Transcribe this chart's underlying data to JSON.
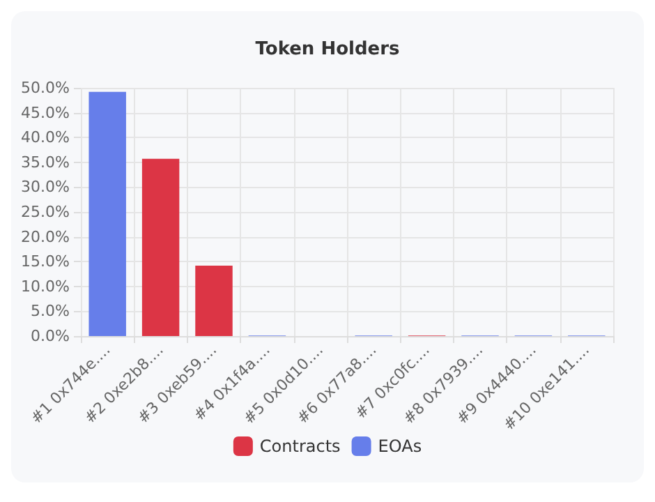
{
  "chart_data": {
    "type": "bar",
    "title": "Token Holders",
    "categories": [
      "#1 0x744e....",
      "#2 0xe2b8....",
      "#3 0xeb59....",
      "#4 0x1f4a....",
      "#5 0x0d10....",
      "#6 0x77a8....",
      "#7 0xc0fc....",
      "#8 0x7939....",
      "#9 0x4440....",
      "#10 0xe141...."
    ],
    "series": [
      {
        "name": "Contracts",
        "color": "#dc3545",
        "values": [
          null,
          35.7,
          14.2,
          null,
          null,
          null,
          0.1,
          null,
          null,
          null
        ]
      },
      {
        "name": "EOAs",
        "color": "#667eea",
        "values": [
          49.2,
          null,
          null,
          0.1,
          null,
          0.1,
          null,
          0.1,
          0.1,
          0.1
        ]
      }
    ],
    "stacked": true,
    "ylim": [
      0,
      50
    ],
    "yticks": [
      {
        "value": 0,
        "label": "0.0%"
      },
      {
        "value": 5,
        "label": "5.0%"
      },
      {
        "value": 10,
        "label": "10.0%"
      },
      {
        "value": 15,
        "label": "15.0%"
      },
      {
        "value": 20,
        "label": "20.0%"
      },
      {
        "value": 25,
        "label": "25.0%"
      },
      {
        "value": 30,
        "label": "30.0%"
      },
      {
        "value": 35,
        "label": "35.0%"
      },
      {
        "value": 40,
        "label": "40.0%"
      },
      {
        "value": 45,
        "label": "45.0%"
      },
      {
        "value": 50,
        "label": "50.0%"
      }
    ],
    "grid": true,
    "legend": "bottom"
  }
}
